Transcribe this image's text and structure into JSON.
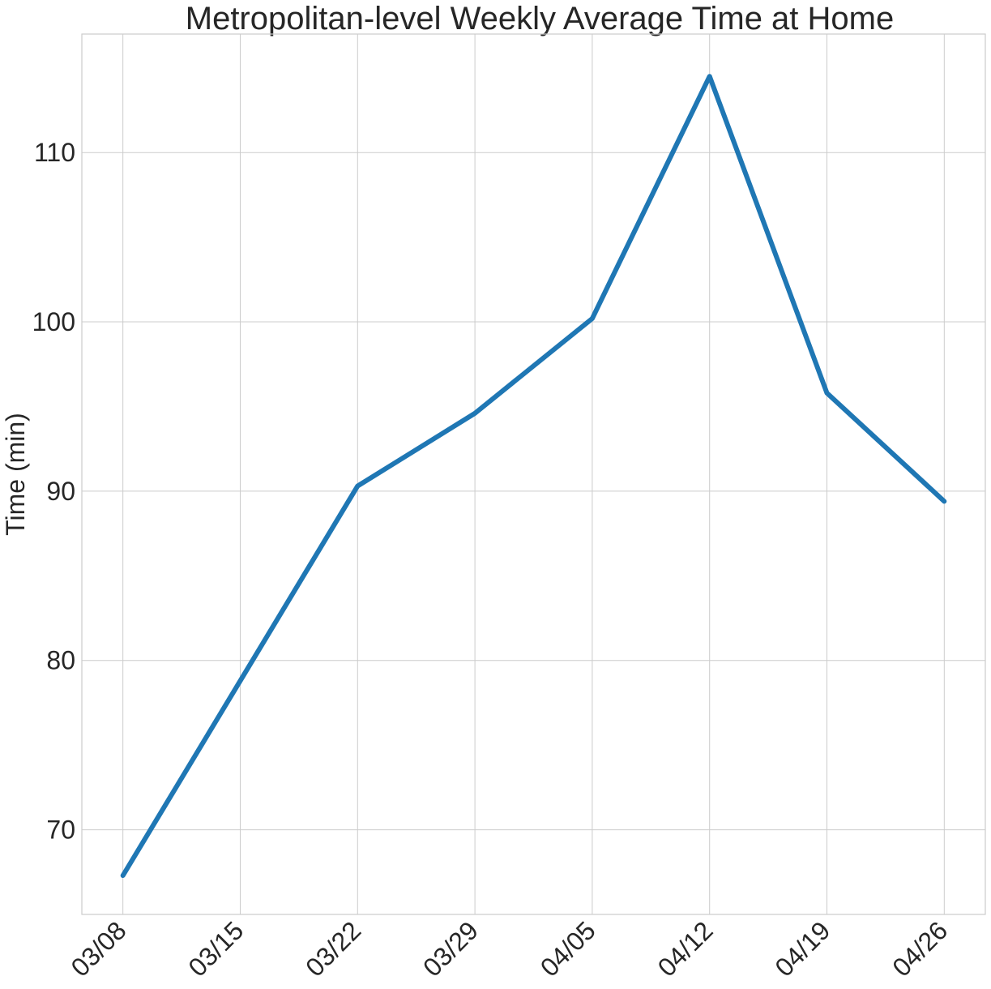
{
  "chart_data": {
    "type": "line",
    "title": "Metropolitan-level Weekly Average Time at Home",
    "xlabel": "",
    "ylabel": "Time (min)",
    "x": [
      "03/08",
      "03/15",
      "03/22",
      "03/29",
      "04/05",
      "04/12",
      "04/19",
      "04/26"
    ],
    "xlim_index": [
      -0.35,
      7.35
    ],
    "series": [
      {
        "values": [
          67.3,
          78.8,
          90.3,
          94.6,
          100.2,
          114.5,
          95.8,
          89.4
        ],
        "color": "#1f77b4"
      }
    ],
    "yticks": [
      70,
      80,
      90,
      100,
      110
    ],
    "ylim": [
      65.0,
      117.0
    ],
    "grid": true,
    "x_tick_rotation": -45
  }
}
